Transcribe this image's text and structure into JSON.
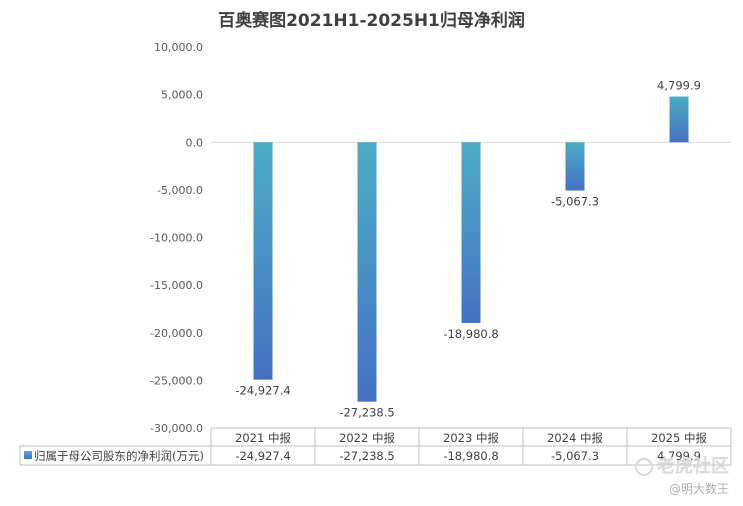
{
  "chart_data": {
    "type": "bar",
    "title": "百奥赛图2021H1-2025H1归母净利润",
    "categories": [
      "2021 中报",
      "2022 中报",
      "2023 中报",
      "2024 中报",
      "2025 中报"
    ],
    "series": [
      {
        "name": "归属于母公司股东的净利润(万元)",
        "values": [
          -24927.4,
          -27238.5,
          -18980.8,
          -5067.3,
          4799.9
        ]
      }
    ],
    "value_labels": [
      "-24,927.4",
      "-27,238.5",
      "-18,980.8",
      "-5,067.3",
      "4,799.9"
    ],
    "table_values": [
      "-24,927.4",
      "-27,238.5",
      "-18,980.8",
      "-5,067.3",
      "4,799.9"
    ],
    "ylim": [
      -30000,
      10000
    ],
    "yticks": [
      10000,
      5000,
      0,
      -5000,
      -10000,
      -15000,
      -20000,
      -25000,
      -30000
    ],
    "ytick_labels": [
      "10,000.0",
      "5,000.0",
      "0.0",
      "-5,000.0",
      "-10,000.0",
      "-15,000.0",
      "-20,000.0",
      "-25,000.0",
      "-30,000.0"
    ],
    "grid": false,
    "legend": "data-table",
    "colors": {
      "bar_top": "#4bacc6",
      "bar_bottom": "#4472c4",
      "axis": "#bfbfbf"
    }
  },
  "watermark": {
    "brand": "老虎社区",
    "author": "@明大数王"
  }
}
